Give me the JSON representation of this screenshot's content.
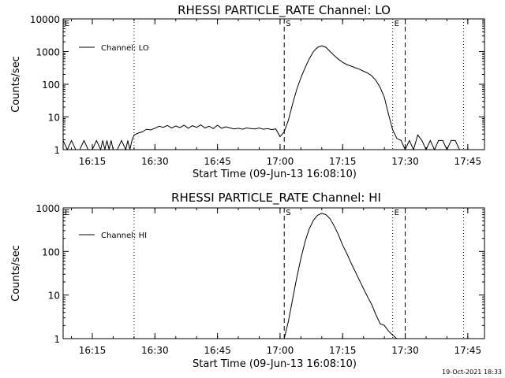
{
  "chart_data": [
    {
      "type": "line",
      "title": "RHESSI PARTICLE_RATE Channel: LO",
      "xlabel": "Start Time (09-Jun-13 16:08:10)",
      "ylabel": "Counts/sec",
      "yscale": "log",
      "ylim": [
        1,
        10000
      ],
      "xlim": [
        "16:08",
        "17:49"
      ],
      "x_ticks": [
        "16:15",
        "16:30",
        "16:45",
        "17:00",
        "17:15",
        "17:30",
        "17:45"
      ],
      "y_ticks": [
        "1",
        "10",
        "100",
        "1000",
        "10000"
      ],
      "legend": {
        "label": "Channel: LO",
        "position": "top-left"
      },
      "markers": [
        {
          "label": "E",
          "time": "16:08",
          "style": "dotted"
        },
        {
          "label": "",
          "time": "16:25",
          "style": "dotted"
        },
        {
          "label": "S",
          "time": "17:01",
          "style": "dashed"
        },
        {
          "label": "E",
          "time": "17:27",
          "style": "dotted"
        },
        {
          "label": "",
          "time": "17:30",
          "style": "dashed"
        },
        {
          "label": "",
          "time": "17:44",
          "style": "dotted"
        }
      ],
      "series": [
        {
          "name": "Channel: LO",
          "points": [
            [
              "16:08",
              1.9
            ],
            [
              "16:09",
              1.0
            ],
            [
              "16:10",
              1.9
            ],
            [
              "16:11",
              1.0
            ],
            [
              "16:12",
              1.0
            ],
            [
              "16:13",
              1.9
            ],
            [
              "16:14",
              1.0
            ],
            [
              "16:15",
              1.0
            ],
            [
              "16:16",
              1.9
            ],
            [
              "16:17",
              1.0
            ],
            [
              "16:17:30",
              1.9
            ],
            [
              "16:18",
              1.0
            ],
            [
              "16:18:30",
              1.9
            ],
            [
              "16:19",
              1.0
            ],
            [
              "16:19:30",
              1.9
            ],
            [
              "16:20",
              1.0
            ],
            [
              "16:21",
              1.0
            ],
            [
              "16:22",
              1.9
            ],
            [
              "16:23",
              1.0
            ],
            [
              "16:23:30",
              1.9
            ],
            [
              "16:24",
              1.0
            ],
            [
              "16:24:30",
              1.9
            ],
            [
              "16:25",
              2.8
            ],
            [
              "16:26",
              3.2
            ],
            [
              "16:27",
              3.5
            ],
            [
              "16:28",
              4.2
            ],
            [
              "16:29",
              4.0
            ],
            [
              "16:30",
              4.5
            ],
            [
              "16:31",
              5.2
            ],
            [
              "16:32",
              4.8
            ],
            [
              "16:33",
              5.5
            ],
            [
              "16:34",
              4.6
            ],
            [
              "16:35",
              5.3
            ],
            [
              "16:36",
              4.7
            ],
            [
              "16:37",
              5.6
            ],
            [
              "16:38",
              4.5
            ],
            [
              "16:39",
              5.4
            ],
            [
              "16:40",
              4.8
            ],
            [
              "16:41",
              5.7
            ],
            [
              "16:42",
              4.6
            ],
            [
              "16:43",
              5.2
            ],
            [
              "16:44",
              4.4
            ],
            [
              "16:45",
              5.6
            ],
            [
              "16:46",
              4.5
            ],
            [
              "16:47",
              5.0
            ],
            [
              "16:48",
              4.6
            ],
            [
              "16:49",
              4.3
            ],
            [
              "16:50",
              4.5
            ],
            [
              "16:51",
              4.2
            ],
            [
              "16:52",
              4.6
            ],
            [
              "16:53",
              4.4
            ],
            [
              "16:54",
              4.3
            ],
            [
              "16:55",
              4.6
            ],
            [
              "16:56",
              4.2
            ],
            [
              "16:57",
              4.4
            ],
            [
              "16:58",
              4.1
            ],
            [
              "16:59",
              4.3
            ],
            [
              "17:00",
              2.5
            ],
            [
              "17:01",
              3.5
            ],
            [
              "17:02",
              8
            ],
            [
              "17:03",
              25
            ],
            [
              "17:04",
              70
            ],
            [
              "17:05",
              160
            ],
            [
              "17:06",
              320
            ],
            [
              "17:07",
              600
            ],
            [
              "17:08",
              1000
            ],
            [
              "17:09",
              1350
            ],
            [
              "17:10",
              1500
            ],
            [
              "17:11",
              1350
            ],
            [
              "17:12",
              1000
            ],
            [
              "17:13",
              750
            ],
            [
              "17:14",
              580
            ],
            [
              "17:15",
              470
            ],
            [
              "17:16",
              400
            ],
            [
              "17:17",
              360
            ],
            [
              "17:18",
              320
            ],
            [
              "17:19",
              290
            ],
            [
              "17:20",
              250
            ],
            [
              "17:21",
              220
            ],
            [
              "17:22",
              180
            ],
            [
              "17:23",
              130
            ],
            [
              "17:24",
              80
            ],
            [
              "17:25",
              40
            ],
            [
              "17:26",
              12
            ],
            [
              "17:27",
              4
            ],
            [
              "17:28",
              2.2
            ],
            [
              "17:29",
              1.9
            ],
            [
              "17:30",
              1.0
            ],
            [
              "17:31",
              1.9
            ],
            [
              "17:32",
              1.0
            ],
            [
              "17:33",
              2.8
            ],
            [
              "17:34",
              1.9
            ],
            [
              "17:35",
              1.0
            ],
            [
              "17:36",
              1.9
            ],
            [
              "17:37",
              1.0
            ],
            [
              "17:38",
              1.9
            ],
            [
              "17:39",
              1.9
            ],
            [
              "17:40",
              1.0
            ],
            [
              "17:41",
              1.9
            ],
            [
              "17:42",
              1.9
            ],
            [
              "17:43",
              1.0
            ],
            [
              "17:44",
              1.0
            ]
          ]
        }
      ]
    },
    {
      "type": "line",
      "title": "RHESSI PARTICLE_RATE Channel: HI",
      "xlabel": "Start Time (09-Jun-13 16:08:10)",
      "ylabel": "Counts/sec",
      "yscale": "log",
      "ylim": [
        1,
        1000
      ],
      "xlim": [
        "16:08",
        "17:49"
      ],
      "x_ticks": [
        "16:15",
        "16:30",
        "16:45",
        "17:00",
        "17:15",
        "17:30",
        "17:45"
      ],
      "y_ticks": [
        "1",
        "10",
        "100",
        "1000"
      ],
      "legend": {
        "label": "Channel: HI",
        "position": "top-left"
      },
      "markers": [
        {
          "label": "E",
          "time": "16:08",
          "style": "dotted"
        },
        {
          "label": "",
          "time": "16:25",
          "style": "dotted"
        },
        {
          "label": "S",
          "time": "17:01",
          "style": "dashed"
        },
        {
          "label": "E",
          "time": "17:27",
          "style": "dotted"
        },
        {
          "label": "",
          "time": "17:30",
          "style": "dashed"
        },
        {
          "label": "",
          "time": "17:44",
          "style": "dotted"
        }
      ],
      "series": [
        {
          "name": "Channel: HI",
          "points": [
            [
              "17:01",
              1.0
            ],
            [
              "17:02",
              2.5
            ],
            [
              "17:03",
              8
            ],
            [
              "17:04",
              25
            ],
            [
              "17:05",
              70
            ],
            [
              "17:06",
              170
            ],
            [
              "17:07",
              330
            ],
            [
              "17:08",
              520
            ],
            [
              "17:09",
              680
            ],
            [
              "17:10",
              750
            ],
            [
              "17:11",
              700
            ],
            [
              "17:12",
              560
            ],
            [
              "17:13",
              380
            ],
            [
              "17:14",
              240
            ],
            [
              "17:15",
              140
            ],
            [
              "17:16",
              90
            ],
            [
              "17:17",
              55
            ],
            [
              "17:18",
              35
            ],
            [
              "17:19",
              22
            ],
            [
              "17:20",
              14
            ],
            [
              "17:21",
              9
            ],
            [
              "17:22",
              6
            ],
            [
              "17:23",
              3.5
            ],
            [
              "17:24",
              2.2
            ],
            [
              "17:25",
              2.0
            ],
            [
              "17:26",
              1.5
            ],
            [
              "17:27",
              1.2
            ],
            [
              "17:28",
              1.0
            ]
          ]
        }
      ]
    }
  ],
  "footer": {
    "timestamp": "19-Oct-2021 18:33"
  }
}
